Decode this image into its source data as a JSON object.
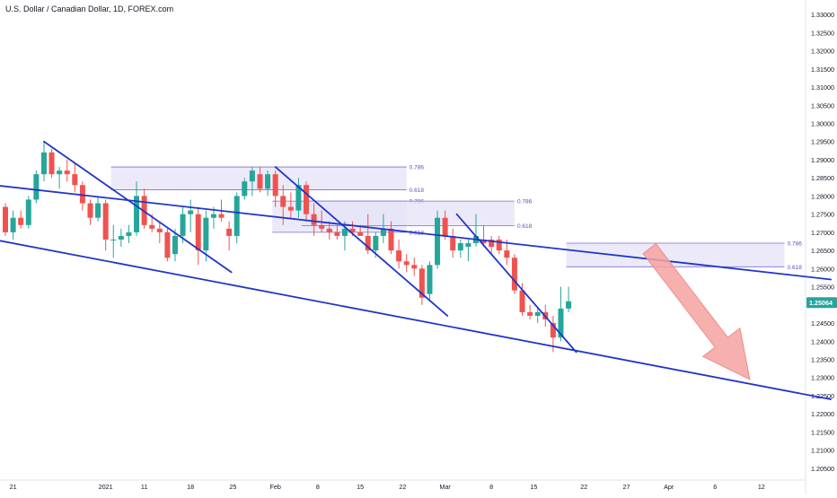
{
  "header": {
    "title": "U.S. Dollar / Canadian Dollar, 1D, FOREX.com"
  },
  "colors": {
    "up": "#26a69a",
    "down": "#ef5350",
    "trendline": "#1f36c8",
    "fib_zone_fill": "#e6e3f7",
    "fib_zone_stroke": "#7c6fd0",
    "fib_label": "#5b50c8",
    "arrow": "#f4a3a0",
    "price_badge": "#26a69a"
  },
  "chart_data": {
    "type": "candlestick",
    "title": "U.S. Dollar / Canadian Dollar, 1D, FOREX.com",
    "ylim": [
      1.2025,
      1.3325
    ],
    "y_ticks": [
      "1.33000",
      "1.32500",
      "1.32000",
      "1.31500",
      "1.31000",
      "1.30500",
      "1.30000",
      "1.29500",
      "1.29000",
      "1.28500",
      "1.28000",
      "1.27500",
      "1.27000",
      "1.26500",
      "1.26000",
      "1.25500",
      "1.25000",
      "1.24500",
      "1.24000",
      "1.23500",
      "1.23000",
      "1.22500",
      "1.22000",
      "1.21500",
      "1.21000",
      "1.20500"
    ],
    "x_ticks": [
      "21",
      "2021",
      "11",
      "18",
      "25",
      "Feb",
      "8",
      "15",
      "22",
      "Mar",
      "8",
      "15",
      "22",
      "27",
      "Apr",
      "6",
      "12"
    ],
    "last_price": "1.25064",
    "candles": [
      {
        "o": 1.277,
        "h": 1.278,
        "l": 1.269,
        "c": 1.27
      },
      {
        "o": 1.27,
        "h": 1.276,
        "l": 1.268,
        "c": 1.274
      },
      {
        "o": 1.274,
        "h": 1.276,
        "l": 1.271,
        "c": 1.272
      },
      {
        "o": 1.272,
        "h": 1.28,
        "l": 1.271,
        "c": 1.279
      },
      {
        "o": 1.279,
        "h": 1.287,
        "l": 1.278,
        "c": 1.286
      },
      {
        "o": 1.286,
        "h": 1.295,
        "l": 1.284,
        "c": 1.292
      },
      {
        "o": 1.292,
        "h": 1.293,
        "l": 1.285,
        "c": 1.286
      },
      {
        "o": 1.286,
        "h": 1.288,
        "l": 1.282,
        "c": 1.287
      },
      {
        "o": 1.287,
        "h": 1.29,
        "l": 1.284,
        "c": 1.286
      },
      {
        "o": 1.286,
        "h": 1.289,
        "l": 1.281,
        "c": 1.283
      },
      {
        "o": 1.283,
        "h": 1.284,
        "l": 1.276,
        "c": 1.278
      },
      {
        "o": 1.278,
        "h": 1.279,
        "l": 1.272,
        "c": 1.274
      },
      {
        "o": 1.274,
        "h": 1.28,
        "l": 1.273,
        "c": 1.278
      },
      {
        "o": 1.278,
        "h": 1.279,
        "l": 1.265,
        "c": 1.268
      },
      {
        "o": 1.268,
        "h": 1.272,
        "l": 1.263,
        "c": 1.268
      },
      {
        "o": 1.268,
        "h": 1.271,
        "l": 1.266,
        "c": 1.269
      },
      {
        "o": 1.269,
        "h": 1.272,
        "l": 1.267,
        "c": 1.27
      },
      {
        "o": 1.27,
        "h": 1.284,
        "l": 1.269,
        "c": 1.28
      },
      {
        "o": 1.28,
        "h": 1.282,
        "l": 1.271,
        "c": 1.272
      },
      {
        "o": 1.272,
        "h": 1.275,
        "l": 1.27,
        "c": 1.271
      },
      {
        "o": 1.271,
        "h": 1.273,
        "l": 1.267,
        "c": 1.27
      },
      {
        "o": 1.27,
        "h": 1.271,
        "l": 1.262,
        "c": 1.263
      },
      {
        "o": 1.264,
        "h": 1.271,
        "l": 1.262,
        "c": 1.269
      },
      {
        "o": 1.269,
        "h": 1.277,
        "l": 1.267,
        "c": 1.275
      },
      {
        "o": 1.275,
        "h": 1.279,
        "l": 1.27,
        "c": 1.276
      },
      {
        "o": 1.275,
        "h": 1.277,
        "l": 1.261,
        "c": 1.265
      },
      {
        "o": 1.265,
        "h": 1.276,
        "l": 1.262,
        "c": 1.274
      },
      {
        "o": 1.274,
        "h": 1.277,
        "l": 1.271,
        "c": 1.275
      },
      {
        "o": 1.275,
        "h": 1.279,
        "l": 1.273,
        "c": 1.274
      },
      {
        "o": 1.271,
        "h": 1.273,
        "l": 1.265,
        "c": 1.269
      },
      {
        "o": 1.269,
        "h": 1.281,
        "l": 1.267,
        "c": 1.28
      },
      {
        "o": 1.28,
        "h": 1.285,
        "l": 1.279,
        "c": 1.284
      },
      {
        "o": 1.284,
        "h": 1.288,
        "l": 1.28,
        "c": 1.287
      },
      {
        "o": 1.286,
        "h": 1.288,
        "l": 1.281,
        "c": 1.282
      },
      {
        "o": 1.282,
        "h": 1.287,
        "l": 1.28,
        "c": 1.286
      },
      {
        "o": 1.286,
        "h": 1.287,
        "l": 1.277,
        "c": 1.28
      },
      {
        "o": 1.28,
        "h": 1.283,
        "l": 1.272,
        "c": 1.277
      },
      {
        "o": 1.277,
        "h": 1.281,
        "l": 1.274,
        "c": 1.276
      },
      {
        "o": 1.276,
        "h": 1.285,
        "l": 1.274,
        "c": 1.283
      },
      {
        "o": 1.283,
        "h": 1.284,
        "l": 1.273,
        "c": 1.275
      },
      {
        "o": 1.275,
        "h": 1.278,
        "l": 1.269,
        "c": 1.272
      },
      {
        "o": 1.272,
        "h": 1.276,
        "l": 1.27,
        "c": 1.271
      },
      {
        "o": 1.271,
        "h": 1.273,
        "l": 1.268,
        "c": 1.27
      },
      {
        "o": 1.27,
        "h": 1.272,
        "l": 1.268,
        "c": 1.269
      },
      {
        "o": 1.269,
        "h": 1.273,
        "l": 1.265,
        "c": 1.271
      },
      {
        "o": 1.271,
        "h": 1.273,
        "l": 1.269,
        "c": 1.27
      },
      {
        "o": 1.27,
        "h": 1.272,
        "l": 1.269,
        "c": 1.269
      },
      {
        "o": 1.269,
        "h": 1.275,
        "l": 1.264,
        "c": 1.265
      },
      {
        "o": 1.265,
        "h": 1.27,
        "l": 1.263,
        "c": 1.269
      },
      {
        "o": 1.269,
        "h": 1.275,
        "l": 1.267,
        "c": 1.271
      },
      {
        "o": 1.271,
        "h": 1.273,
        "l": 1.264,
        "c": 1.265
      },
      {
        "o": 1.265,
        "h": 1.268,
        "l": 1.26,
        "c": 1.262
      },
      {
        "o": 1.262,
        "h": 1.264,
        "l": 1.259,
        "c": 1.261
      },
      {
        "o": 1.261,
        "h": 1.263,
        "l": 1.258,
        "c": 1.26
      },
      {
        "o": 1.26,
        "h": 1.261,
        "l": 1.25,
        "c": 1.252
      },
      {
        "o": 1.253,
        "h": 1.262,
        "l": 1.251,
        "c": 1.261
      },
      {
        "o": 1.261,
        "h": 1.276,
        "l": 1.26,
        "c": 1.274
      },
      {
        "o": 1.274,
        "h": 1.276,
        "l": 1.268,
        "c": 1.269
      },
      {
        "o": 1.269,
        "h": 1.271,
        "l": 1.263,
        "c": 1.265
      },
      {
        "o": 1.265,
        "h": 1.268,
        "l": 1.263,
        "c": 1.267
      },
      {
        "o": 1.266,
        "h": 1.268,
        "l": 1.262,
        "c": 1.267
      },
      {
        "o": 1.267,
        "h": 1.275,
        "l": 1.266,
        "c": 1.269
      },
      {
        "o": 1.268,
        "h": 1.272,
        "l": 1.266,
        "c": 1.267
      },
      {
        "o": 1.268,
        "h": 1.269,
        "l": 1.264,
        "c": 1.266
      },
      {
        "o": 1.268,
        "h": 1.269,
        "l": 1.264,
        "c": 1.265
      },
      {
        "o": 1.265,
        "h": 1.268,
        "l": 1.261,
        "c": 1.263
      },
      {
        "o": 1.263,
        "h": 1.264,
        "l": 1.253,
        "c": 1.254
      },
      {
        "o": 1.254,
        "h": 1.256,
        "l": 1.247,
        "c": 1.248
      },
      {
        "o": 1.248,
        "h": 1.25,
        "l": 1.246,
        "c": 1.247
      },
      {
        "o": 1.247,
        "h": 1.249,
        "l": 1.245,
        "c": 1.248
      },
      {
        "o": 1.248,
        "h": 1.25,
        "l": 1.244,
        "c": 1.246
      },
      {
        "o": 1.245,
        "h": 1.247,
        "l": 1.237,
        "c": 1.241
      },
      {
        "o": 1.241,
        "h": 1.255,
        "l": 1.24,
        "c": 1.249
      },
      {
        "o": 1.249,
        "h": 1.255,
        "l": 1.248,
        "c": 1.251
      }
    ],
    "trendlines": [
      {
        "name": "upper-channel",
        "p1": [
          -1.5,
          1.283
        ],
        "p2": [
          107,
          1.257
        ]
      },
      {
        "name": "lower-channel",
        "p1": [
          -1.5,
          1.268
        ],
        "p2": [
          107,
          1.224
        ]
      },
      {
        "name": "leg-1",
        "p1": [
          5,
          1.295
        ],
        "p2": [
          29.3,
          1.259
        ]
      },
      {
        "name": "leg-2",
        "p1": [
          35,
          1.288
        ],
        "p2": [
          57.3,
          1.247
        ]
      },
      {
        "name": "leg-3",
        "p1": [
          58.5,
          1.275
        ],
        "p2": [
          74,
          1.237
        ]
      }
    ],
    "fib_zones": [
      {
        "from": 34.6,
        "to": 52,
        "top": 1.2786,
        "bottom": 1.27,
        "label_top": "0.786",
        "label_bottom": "0.618"
      },
      {
        "from": 13.7,
        "to": 52,
        "top": 1.288,
        "bottom": 1.2817,
        "label_top": "0.786",
        "label_bottom": "0.618"
      },
      {
        "from": 38.4,
        "to": 66,
        "top": 1.2786,
        "bottom": 1.2718,
        "label_top": "0.786",
        "label_bottom": "0.618"
      },
      {
        "from": 72.7,
        "to": 101,
        "top": 1.267,
        "bottom": 1.2605,
        "label_top": "0.786",
        "label_bottom": "0.618"
      }
    ],
    "projection_arrow": {
      "from": [
        83.5,
        1.2655
      ],
      "to": [
        96.5,
        1.2295
      ]
    }
  }
}
